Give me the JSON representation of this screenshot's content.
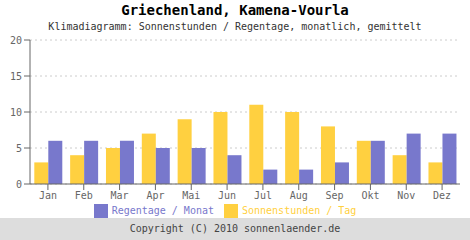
{
  "chart_data": {
    "type": "bar",
    "title": "Griechenland, Kamena-Vourla",
    "subtitle": "Klimadiagramm: Sonnenstunden / Regentage, monatlich, gemittelt",
    "annotations": [
      "Copyright (C) 2010 sonnenlaender.de"
    ],
    "categories": [
      "Jan",
      "Feb",
      "Mar",
      "Apr",
      "Mai",
      "Jun",
      "Jul",
      "Aug",
      "Sep",
      "Okt",
      "Nov",
      "Dez"
    ],
    "series": [
      {
        "name": "Sonnenstunden / Tag",
        "color": "#FFD040",
        "values": [
          3,
          4,
          5,
          7,
          9,
          10,
          11,
          10,
          8,
          6,
          4,
          3
        ]
      },
      {
        "name": "Regentage / Monat",
        "color": "#7878CC",
        "values": [
          6,
          6,
          6,
          5,
          5,
          4,
          2,
          2,
          3,
          6,
          7,
          7
        ]
      }
    ],
    "ylim": [
      0,
      20
    ],
    "yticks": [
      0,
      5,
      10,
      15,
      20
    ],
    "grid": true,
    "legend": "bottom"
  }
}
